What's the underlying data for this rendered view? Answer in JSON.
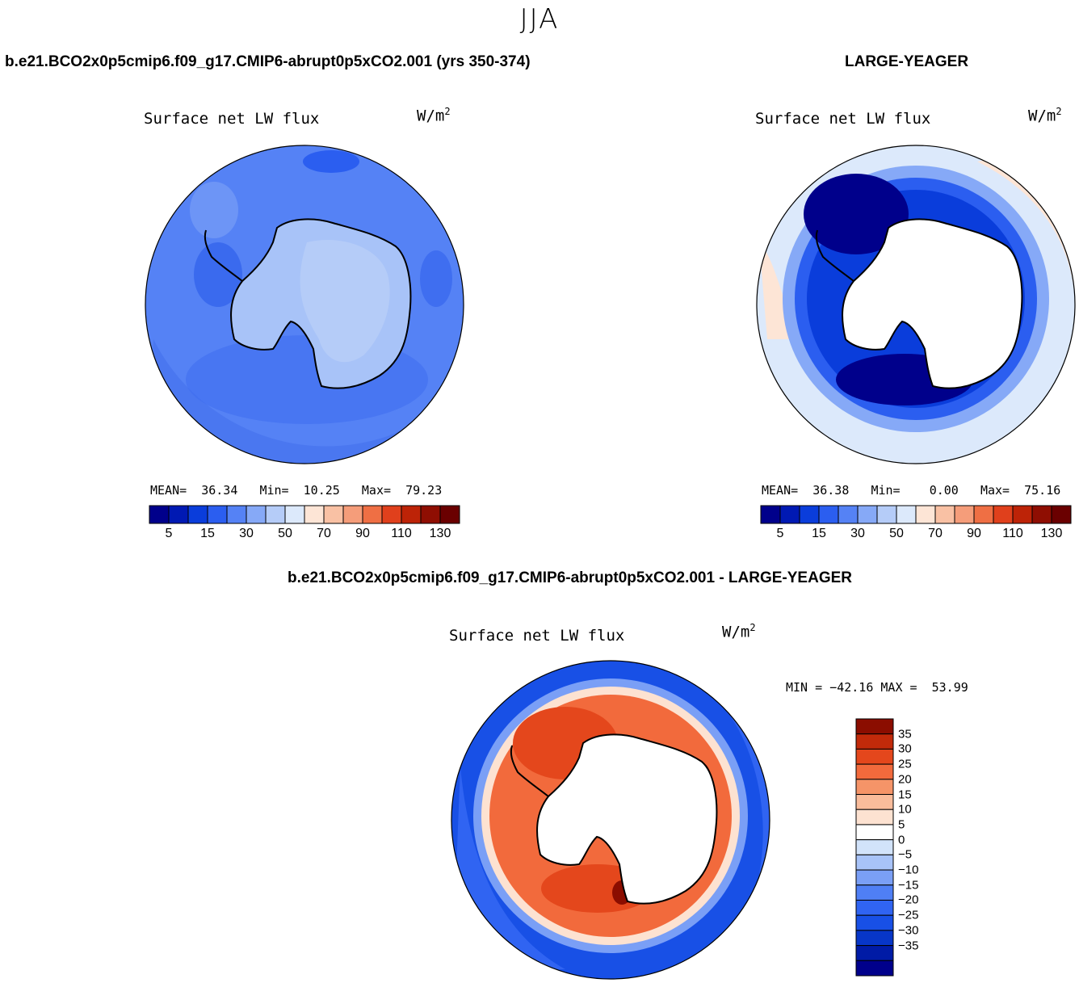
{
  "season": "JJA",
  "panels": [
    {
      "title": "b.e21.BCO2x0p5cmip6.f09_g17.CMIP6-abrupt0p5xCO2.001 (yrs 350-374)",
      "label": "Surface net LW flux",
      "units": "W/m",
      "units_sup": "2",
      "stats": {
        "mean_label": "MEAN=",
        "mean": "36.34",
        "min_label": "Min=",
        "min": "10.25",
        "max_label": "Max=",
        "max": "79.23"
      },
      "colorbar_ticks": [
        "5",
        "15",
        "30",
        "50",
        "70",
        "90",
        "110",
        "130"
      ]
    },
    {
      "title": "LARGE-YEAGER",
      "label": "Surface net LW flux",
      "units": "W/m",
      "units_sup": "2",
      "stats": {
        "mean_label": "MEAN=",
        "mean": "36.38",
        "min_label": "Min=",
        "min": "0.00",
        "max_label": "Max=",
        "max": "75.16"
      },
      "colorbar_ticks": [
        "5",
        "15",
        "30",
        "50",
        "70",
        "90",
        "110",
        "130"
      ]
    }
  ],
  "diff": {
    "title": "b.e21.BCO2x0p5cmip6.f09_g17.CMIP6-abrupt0p5xCO2.001 - LARGE-YEAGER",
    "label": "Surface net LW flux",
    "units": "W/m",
    "units_sup": "2",
    "minmax": "MIN = −42.16 MAX =  53.99",
    "colorbar_ticks": [
      "35",
      "30",
      "25",
      "20",
      "15",
      "10",
      "5",
      "0",
      "−5",
      "−10",
      "−15",
      "−20",
      "−25",
      "−30",
      "−35"
    ]
  },
  "colors": {
    "abs_scale": [
      "#00008b",
      "#0019b3",
      "#0a3ddb",
      "#2b5ef0",
      "#5582f5",
      "#86a9f7",
      "#b5ccf8",
      "#dce9fb",
      "#fde5d6",
      "#f9c1a4",
      "#f59d7a",
      "#ef6f44",
      "#e0401c",
      "#bd2307",
      "#8f0e02",
      "#6a0000"
    ],
    "diff_scale": [
      "#00008b",
      "#001ba6",
      "#0736c8",
      "#1850e6",
      "#3064f2",
      "#4f7ff5",
      "#7a9ff6",
      "#a8c3f8",
      "#d2e3fa",
      "#ffffff",
      "#fde2d1",
      "#f9bc9b",
      "#f59468",
      "#f26a3c",
      "#e4471c",
      "#c22a0a",
      "#8b0d00"
    ],
    "land": "#ffffff",
    "coast": "#000000"
  }
}
